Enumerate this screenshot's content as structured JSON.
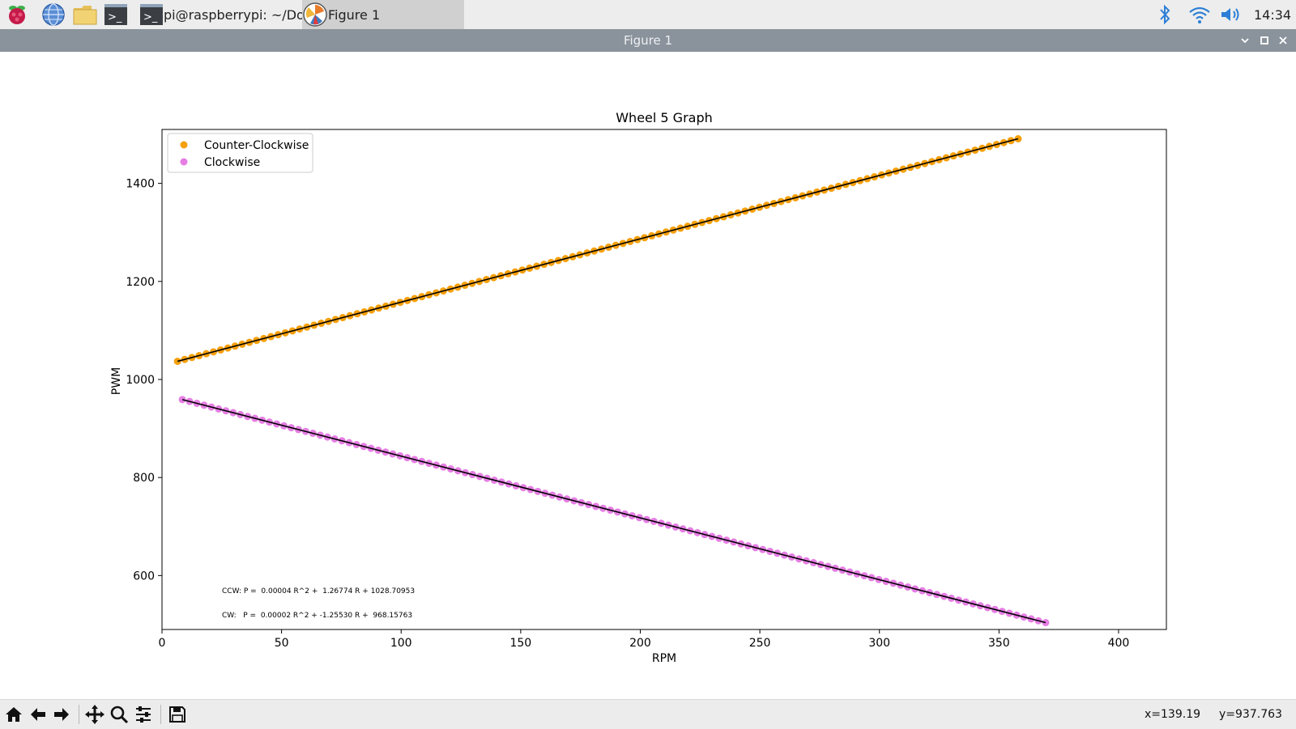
{
  "taskbar": {
    "icons": [
      "raspberry-menu-icon",
      "web-browser-icon",
      "file-manager-icon",
      "terminal-icon"
    ],
    "tasks": [
      {
        "label": "pi@raspberrypi: ~/Do…",
        "icon": "terminal-icon"
      },
      {
        "label": "Figure 1",
        "icon": "matplotlib-icon"
      }
    ],
    "tray": [
      "bluetooth-icon",
      "wifi-icon",
      "volume-icon"
    ],
    "clock": "14:34"
  },
  "window": {
    "title": "Figure 1",
    "buttons": [
      "minimize-icon",
      "maximize-icon",
      "close-icon"
    ]
  },
  "toolbar": {
    "tools": [
      "home-icon",
      "back-icon",
      "forward-icon",
      "pan-icon",
      "zoom-icon",
      "configure-subplots-icon",
      "save-icon"
    ],
    "coord_x": "x=139.19",
    "coord_y": "y=937.763"
  },
  "colors": {
    "ccw": "#f5a00c",
    "cw": "#e67ee4",
    "fit": "#000000",
    "titlebar": "#8a939c"
  },
  "chart_data": {
    "type": "scatter",
    "title": "Wheel 5 Graph",
    "xlabel": "RPM",
    "ylabel": "PWM",
    "xlim": [
      0,
      420
    ],
    "ylim": [
      490,
      1510
    ],
    "xticks": [
      0,
      50,
      100,
      150,
      200,
      250,
      300,
      350,
      400
    ],
    "yticks": [
      600,
      800,
      1000,
      1200,
      1400
    ],
    "legend_placement": "upper-left",
    "grid": false,
    "series": [
      {
        "name": "Counter-Clockwise",
        "color": "#f5a00c",
        "x_range": [
          6.5,
          358
        ],
        "y_range": [
          1037,
          1491
        ],
        "n_points": 118,
        "fit": {
          "a": 4e-05,
          "b": 1.26774,
          "c": 1028.70953
        }
      },
      {
        "name": "Clockwise",
        "color": "#e67ee4",
        "x_range": [
          8.5,
          369.5
        ],
        "y_range": [
          959,
          504
        ],
        "n_points": 120,
        "fit": {
          "a": 2e-05,
          "b": -1.2553,
          "c": 968.15763
        }
      }
    ],
    "annotations": [
      "CCW: P =  0.00004 R^2 +  1.26774 R + 1028.70953",
      "CW:   P =  0.00002 R^2 + -1.25530 R +  968.15763"
    ]
  }
}
